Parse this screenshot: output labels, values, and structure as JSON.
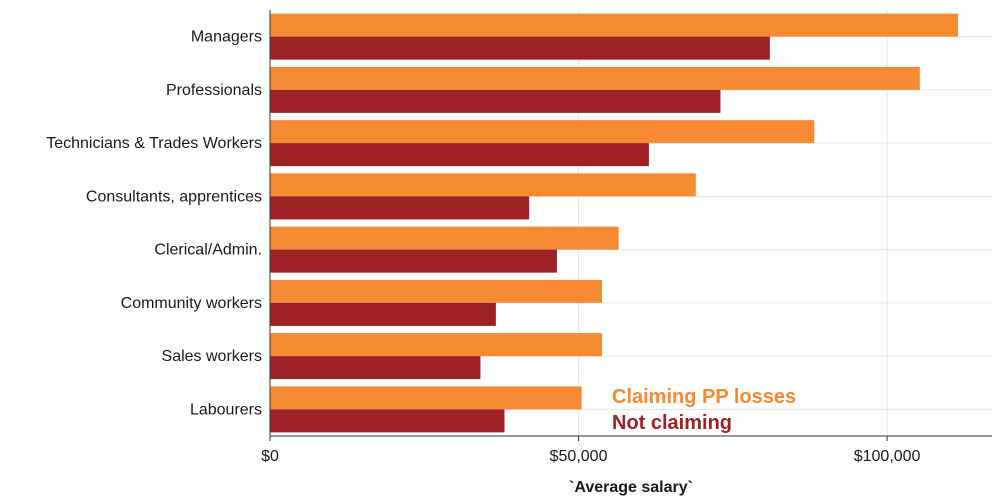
{
  "chart_data": {
    "type": "bar",
    "orientation": "horizontal",
    "categories": [
      "Managers",
      "Professionals",
      "Technicians & Trades Workers",
      "Consultants, apprentices",
      "Clerical/Admin.",
      "Community workers",
      "Sales workers",
      "Labourers"
    ],
    "series": [
      {
        "name": "Claiming PP losses",
        "color": "#f58a33",
        "values": [
          111500,
          105300,
          88200,
          69000,
          56500,
          53800,
          53800,
          50500
        ]
      },
      {
        "name": "Not claiming",
        "color": "#9e2126",
        "values": [
          81000,
          73000,
          61400,
          42000,
          46500,
          36600,
          34100,
          38000
        ]
      }
    ],
    "xlabel": "`Average salary`",
    "xlim": [
      0,
      117000
    ],
    "xticks": [
      0,
      50000,
      100000
    ],
    "xtick_labels": [
      "$0",
      "$50,000",
      "$100,000"
    ],
    "grid": true,
    "legend_position": "inside-bottom-right"
  }
}
